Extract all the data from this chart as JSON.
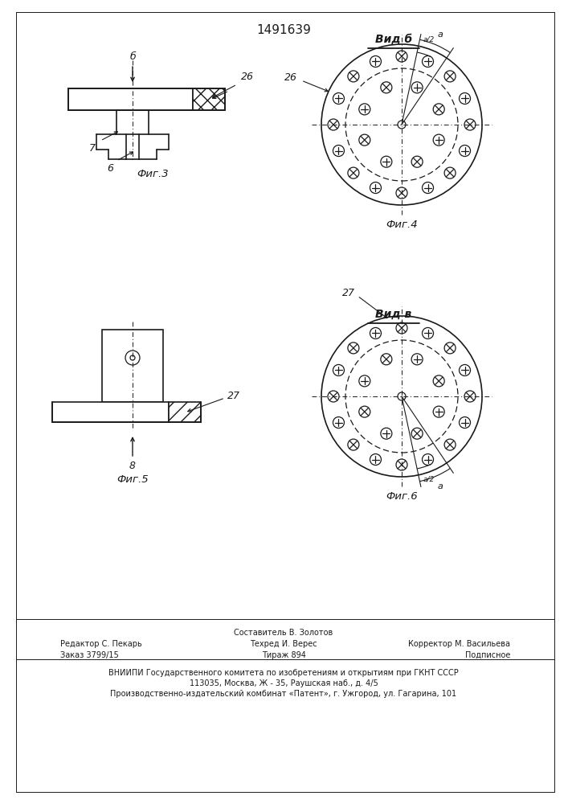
{
  "title": "1491639",
  "background": "#ffffff",
  "line_color": "#1a1a1a",
  "fig3_label": "Фиг.3",
  "fig4_label": "Фиг.4",
  "fig5_label": "Фиг.5",
  "fig6_label": "Фиг.6",
  "vid_b_label": "Вид б",
  "vid_v_label": "Вид в",
  "label_6": "6",
  "label_7": "7",
  "label_8": "8",
  "label_b": "б",
  "label_26": "26",
  "label_27": "27",
  "label_a": "а",
  "label_a2": "а/2",
  "footer_col1": "Редактор С. Пекарь",
  "footer_col2_l1": "Составитель В. Золотов",
  "footer_col2_l2": "Техред И. Верес",
  "footer_col2_l3": "Тираж 894",
  "footer_col3": "Корректор М. Васильева",
  "footer_order": "Заказ 3799/15",
  "footer_podp": "Подписное",
  "footer_vniip": "ВНИИПИ Государственного комитета по изобретениям и открытиям при ГКНТ СССР",
  "footer_addr": "113035, Москва, Ж - 35, Раушская наб., д. 4/5",
  "footer_patent": "Производственно-издательский комбинат «Патент», г. Ужгород, ул. Гагарина, 101"
}
